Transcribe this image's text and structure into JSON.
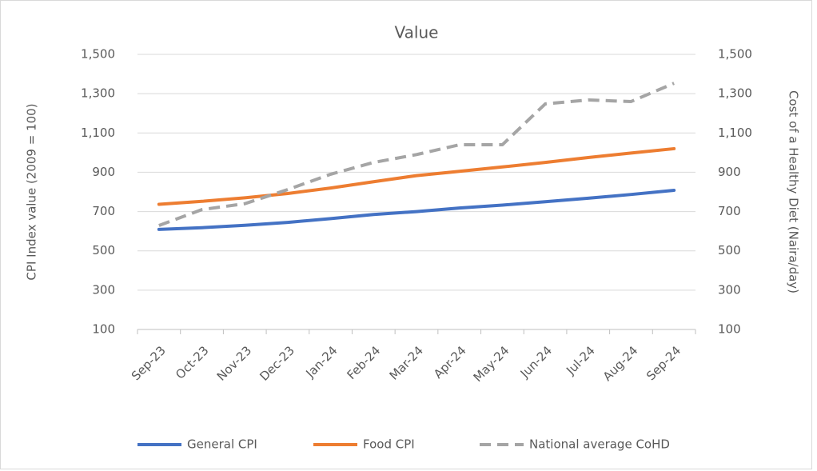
{
  "chart_data": {
    "type": "line",
    "title": "Value",
    "categories": [
      "Sep-23",
      "Oct-23",
      "Nov-23",
      "Dec-23",
      "Jan-24",
      "Feb-24",
      "Mar-24",
      "Apr-24",
      "May-24",
      "Jun-24",
      "Jul-24",
      "Aug-24",
      "Sep-24"
    ],
    "series": [
      {
        "name": "General CPI",
        "color": "#4472c4",
        "values": [
          609,
          618,
          630,
          645,
          664,
          685,
          700,
          718,
          733,
          750,
          768,
          787,
          808
        ]
      },
      {
        "name": "Food CPI",
        "color": "#ed7d31",
        "values": [
          737,
          752,
          770,
          792,
          820,
          852,
          883,
          905,
          927,
          950,
          975,
          998,
          1020
        ]
      },
      {
        "name": "National average CoHD",
        "color": "#a5a5a5",
        "dashed": true,
        "axis": "y2",
        "values": [
          629,
          710,
          740,
          812,
          890,
          950,
          990,
          1040,
          1040,
          1248,
          1268,
          1260,
          1353
        ]
      }
    ],
    "ylabel": "CPI Index value (2009 = 100)",
    "y2label": "Cost of a Healthy Diet (Naira/day)",
    "ylim": [
      100,
      1500
    ],
    "yticks": [
      100,
      300,
      500,
      700,
      900,
      {
        "value": 1100,
        "label": "1,100"
      },
      {
        "value": 1300,
        "label": "1,300"
      },
      {
        "value": 1500,
        "label": "1,500"
      }
    ],
    "y2lim": [
      100,
      1500
    ],
    "y2ticks": [
      100,
      300,
      500,
      700,
      900,
      {
        "value": 1100,
        "label": "1,100"
      },
      {
        "value": 1300,
        "label": "1,300"
      },
      {
        "value": 1500,
        "label": "1,500"
      }
    ],
    "grid": true,
    "legend": "bottom"
  }
}
